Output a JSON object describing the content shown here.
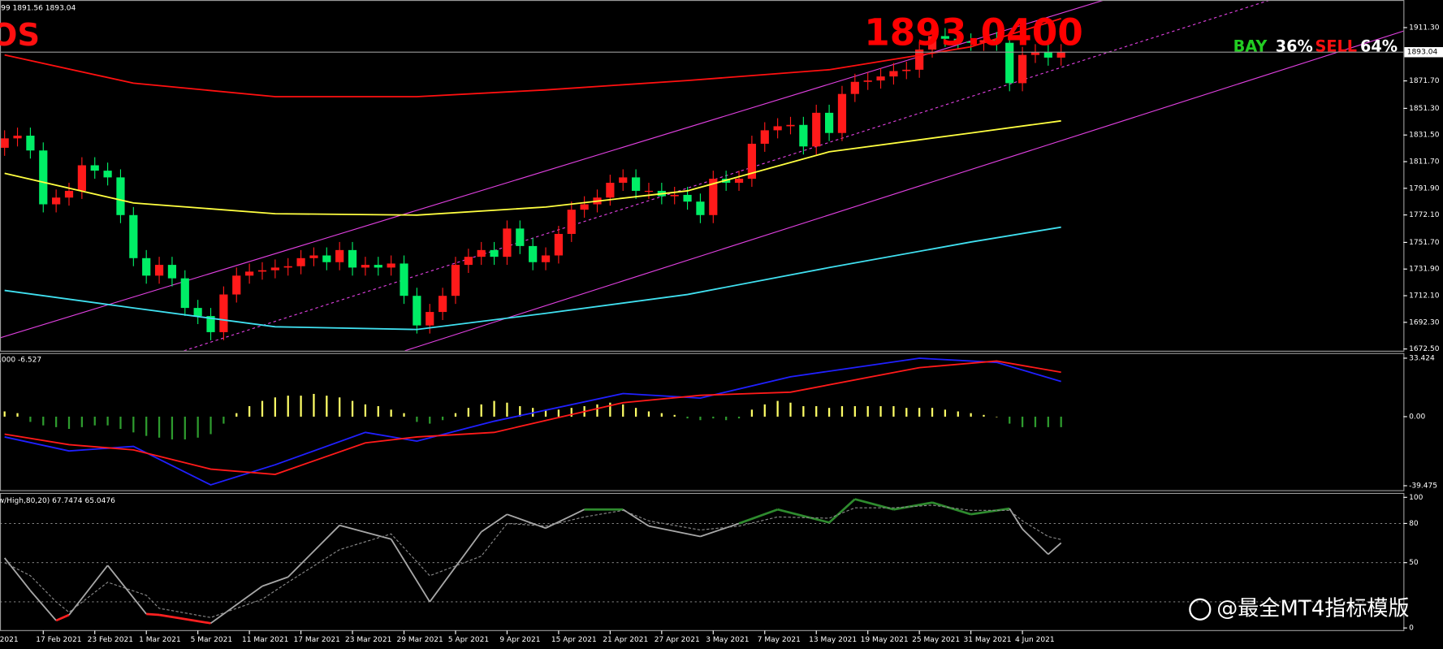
{
  "header": {
    "symbol_fragment": "OS",
    "ohlc_fragment": "99 1891.56 1893.04",
    "big_price": "1893.0400",
    "buy_label": "BAY",
    "buy_pct": "36%",
    "sell_label": "SELL",
    "sell_pct": "64%",
    "watermark": "@最全MT4指标模版"
  },
  "chart_data": [
    {
      "type": "candlestick",
      "up_color": "#ff1a1a",
      "down_color": "#00ee66",
      "open": [
        1822,
        1829,
        1831,
        1820,
        1780,
        1785,
        1790,
        1809,
        1805,
        1800,
        1772,
        1740,
        1727,
        1735,
        1725,
        1703,
        1697,
        1685,
        1713,
        1727,
        1730,
        1731,
        1733,
        1734,
        1740,
        1742,
        1737,
        1746,
        1733,
        1735,
        1733,
        1736,
        1712,
        1690,
        1700,
        1712,
        1735,
        1741,
        1746,
        1741,
        1762,
        1749,
        1737,
        1742,
        1758,
        1776,
        1780,
        1785,
        1796,
        1800,
        1790,
        1790,
        1786,
        1787,
        1782,
        1772,
        1799,
        1796,
        1799,
        1825,
        1835,
        1838,
        1839,
        1823,
        1848,
        1833,
        1862,
        1871,
        1872,
        1875,
        1879,
        1880,
        1895,
        1905,
        1903,
        1901,
        1900,
        1902,
        1900,
        1870,
        1891,
        1893,
        1889
      ],
      "high": [
        1835,
        1837,
        1837,
        1826,
        1791,
        1796,
        1815,
        1815,
        1811,
        1806,
        1778,
        1746,
        1741,
        1741,
        1731,
        1709,
        1703,
        1719,
        1733,
        1736,
        1737,
        1739,
        1740,
        1746,
        1748,
        1748,
        1752,
        1752,
        1741,
        1741,
        1742,
        1742,
        1718,
        1706,
        1718,
        1741,
        1747,
        1752,
        1752,
        1768,
        1768,
        1755,
        1748,
        1764,
        1782,
        1786,
        1791,
        1802,
        1806,
        1806,
        1796,
        1796,
        1793,
        1793,
        1788,
        1805,
        1805,
        1805,
        1831,
        1841,
        1844,
        1845,
        1845,
        1854,
        1854,
        1868,
        1877,
        1878,
        1881,
        1885,
        1886,
        1901,
        1911,
        1911,
        1909,
        1907,
        1908,
        1908,
        1906,
        1897,
        1899,
        1899,
        1899
      ],
      "low": [
        1816,
        1823,
        1814,
        1774,
        1774,
        1779,
        1784,
        1799,
        1794,
        1766,
        1734,
        1721,
        1721,
        1719,
        1697,
        1691,
        1679,
        1679,
        1707,
        1721,
        1724,
        1725,
        1727,
        1728,
        1734,
        1731,
        1731,
        1727,
        1727,
        1727,
        1727,
        1706,
        1684,
        1684,
        1694,
        1706,
        1729,
        1735,
        1735,
        1735,
        1743,
        1731,
        1731,
        1736,
        1752,
        1770,
        1774,
        1779,
        1790,
        1784,
        1784,
        1780,
        1780,
        1776,
        1766,
        1766,
        1790,
        1790,
        1793,
        1819,
        1829,
        1832,
        1817,
        1817,
        1827,
        1827,
        1856,
        1865,
        1866,
        1869,
        1873,
        1874,
        1889,
        1897,
        1895,
        1894,
        1894,
        1894,
        1864,
        1864,
        1885,
        1883,
        1883
      ],
      "close": [
        1829,
        1831,
        1820,
        1780,
        1785,
        1790,
        1809,
        1805,
        1800,
        1772,
        1740,
        1727,
        1735,
        1725,
        1703,
        1697,
        1685,
        1713,
        1727,
        1730,
        1731,
        1733,
        1734,
        1740,
        1742,
        1737,
        1746,
        1733,
        1735,
        1733,
        1736,
        1712,
        1690,
        1700,
        1712,
        1735,
        1741,
        1746,
        1741,
        1762,
        1749,
        1737,
        1742,
        1758,
        1776,
        1780,
        1785,
        1796,
        1800,
        1790,
        1790,
        1786,
        1787,
        1782,
        1772,
        1799,
        1796,
        1799,
        1825,
        1835,
        1838,
        1839,
        1823,
        1848,
        1833,
        1862,
        1871,
        1872,
        1875,
        1879,
        1880,
        1895,
        1905,
        1903,
        1901,
        1900,
        1902,
        1900,
        1870,
        1891,
        1893,
        1889,
        1893.04
      ],
      "ma": {
        "x": [
          0,
          10,
          21,
          32,
          42,
          53,
          64,
          75,
          82
        ],
        "series": [
          {
            "color": "#ff1010",
            "values": [
              1891,
              1870,
              1860,
              1860,
              1865,
              1872,
              1880,
              1897,
              1918
            ]
          },
          {
            "color": "#ffff40",
            "values": [
              1803,
              1781,
              1773,
              1772,
              1778,
              1790,
              1819,
              1833,
              1842
            ]
          },
          {
            "color": "#40e0f0",
            "values": [
              1716,
              1703,
              1689,
              1687,
              1699,
              1713,
              1733,
              1752,
              1763
            ]
          }
        ]
      },
      "bid": 1893.04,
      "ylim": [
        1671.2,
        1931.8
      ],
      "yticks": [
        {
          "value": 1911.3,
          "label": "1911.30"
        },
        {
          "value": 1871.7,
          "label": "1871.70"
        },
        {
          "value": 1851.3,
          "label": "1851.30"
        },
        {
          "value": 1831.5,
          "label": "1831.50"
        },
        {
          "value": 1811.7,
          "label": "1811.70"
        },
        {
          "value": 1791.9,
          "label": "1791.90"
        },
        {
          "value": 1772.1,
          "label": "1772.10"
        },
        {
          "value": 1751.7,
          "label": "1751.70"
        },
        {
          "value": 1731.9,
          "label": "1731.90"
        },
        {
          "value": 1712.1,
          "label": "1712.10"
        },
        {
          "value": 1692.3,
          "label": "1692.30"
        },
        {
          "value": 1672.5,
          "label": "1672.50"
        }
      ],
      "xticks": [
        {
          "value": -1,
          "label": "Feb 2021"
        },
        {
          "value": 3,
          "label": "17 Feb 2021"
        },
        {
          "value": 7,
          "label": "23 Feb 2021"
        },
        {
          "value": 11,
          "label": "1 Mar 2021"
        },
        {
          "value": 15,
          "label": "5 Mar 2021"
        },
        {
          "value": 19,
          "label": "11 Mar 2021"
        },
        {
          "value": 23,
          "label": "17 Mar 2021"
        },
        {
          "value": 27,
          "label": "23 Mar 2021"
        },
        {
          "value": 31,
          "label": "29 Mar 2021"
        },
        {
          "value": 35,
          "label": "5 Apr 2021"
        },
        {
          "value": 39,
          "label": "9 Apr 2021"
        },
        {
          "value": 43,
          "label": "15 Apr 2021"
        },
        {
          "value": 47,
          "label": "21 Apr 2021"
        },
        {
          "value": 51,
          "label": "27 Apr 2021"
        },
        {
          "value": 55,
          "label": "3 May 2021"
        },
        {
          "value": 59,
          "label": "7 May 2021"
        },
        {
          "value": 63,
          "label": "13 May 2021"
        },
        {
          "value": 67,
          "label": "19 May 2021"
        },
        {
          "value": 71,
          "label": "25 May 2021"
        },
        {
          "value": 75,
          "label": "31 May 2021"
        },
        {
          "value": 79,
          "label": "4 Jun 2021"
        }
      ]
    },
    {
      "type": "bar",
      "header": "0.000 -6.527",
      "pos_color": "#ffff66",
      "neg_color": "#2e9b2e",
      "values": [
        3,
        2,
        -3,
        -5,
        -6,
        -7,
        -6,
        -5,
        -5,
        -7,
        -9,
        -11,
        -12,
        -13,
        -13,
        -12,
        -10,
        -4,
        2,
        6,
        9,
        11,
        12,
        12,
        13,
        12,
        11,
        9,
        7,
        6,
        4,
        2,
        -3,
        -4,
        -2,
        2,
        5,
        7,
        9,
        8,
        6,
        5,
        4,
        4,
        5,
        6,
        7,
        8,
        7,
        5,
        3,
        2,
        1,
        -1,
        -2,
        -1,
        -2,
        -1,
        4,
        7,
        9,
        8,
        6,
        6,
        5,
        6,
        6,
        6,
        6,
        6,
        5,
        5,
        5,
        4,
        3,
        2,
        1,
        0,
        -4,
        -6,
        -6,
        -6,
        -6
      ],
      "series": [
        {
          "color": "#2020ff",
          "x": [
            0,
            5,
            10,
            16,
            21,
            28,
            32,
            38,
            48,
            54,
            61,
            71,
            77,
            82
          ],
          "values": [
            -11.6,
            -19.6,
            -17,
            -39,
            -27.5,
            -9,
            -14,
            -2.6,
            13.2,
            10.6,
            22.8,
            33.4,
            31,
            20.1
          ]
        },
        {
          "color": "#ff1a1a",
          "x": [
            0,
            5,
            10,
            16,
            21,
            28,
            32,
            38,
            48,
            54,
            61,
            71,
            77,
            82
          ],
          "values": [
            -10,
            -16,
            -19,
            -30,
            -33,
            -15,
            -11.6,
            -9,
            8,
            12.2,
            14,
            28,
            31.8,
            25.4
          ]
        }
      ],
      "ylim": [
        -42.3,
        36.1
      ],
      "yticks": [
        33.424,
        {
          "value": 0,
          "label": "0.00"
        },
        -39.475
      ]
    },
    {
      "type": "line",
      "header": "w/High,80,20) 67.7474 65.0476",
      "zone_colors": {
        "high": "#2e8b2e",
        "mid": "#a8a8a8",
        "low": "#ff2020"
      },
      "series": [
        {
          "color": "#a8a8a8",
          "x": [
            0,
            2,
            4,
            5,
            8,
            11,
            12,
            16,
            20,
            22,
            26,
            30,
            33,
            37,
            39,
            42,
            45,
            48,
            50,
            54,
            57,
            60,
            64,
            66,
            69,
            72,
            75,
            78,
            79,
            81,
            82
          ],
          "values": [
            53.6,
            28.6,
            5.7,
            10,
            47.9,
            10.7,
            10,
            3.6,
            32,
            39,
            78.6,
            68,
            20,
            73.6,
            87,
            76.4,
            90.7,
            90.7,
            78,
            70,
            80,
            90.7,
            80.7,
            98.6,
            90.7,
            96,
            87,
            91.4,
            75.7,
            56.4,
            65.0476
          ]
        },
        {
          "color": "#8a8a8a",
          "dash": true,
          "x": [
            0,
            2,
            4,
            5,
            8,
            11,
            12,
            16,
            20,
            22,
            26,
            30,
            33,
            37,
            39,
            42,
            45,
            48,
            50,
            54,
            57,
            60,
            64,
            66,
            69,
            72,
            75,
            78,
            79,
            81,
            82
          ],
          "values": [
            50,
            40,
            20,
            12,
            35,
            25,
            15,
            8,
            22,
            35,
            60,
            72,
            40,
            55,
            80,
            78,
            85,
            90,
            82,
            75,
            78,
            85,
            84,
            92,
            92,
            94,
            90,
            90,
            82,
            70,
            67.7474
          ]
        }
      ],
      "levels": [
        20,
        50,
        80
      ],
      "ylim": [
        -2,
        103
      ],
      "yticks": [
        100,
        80,
        50,
        0
      ]
    }
  ]
}
